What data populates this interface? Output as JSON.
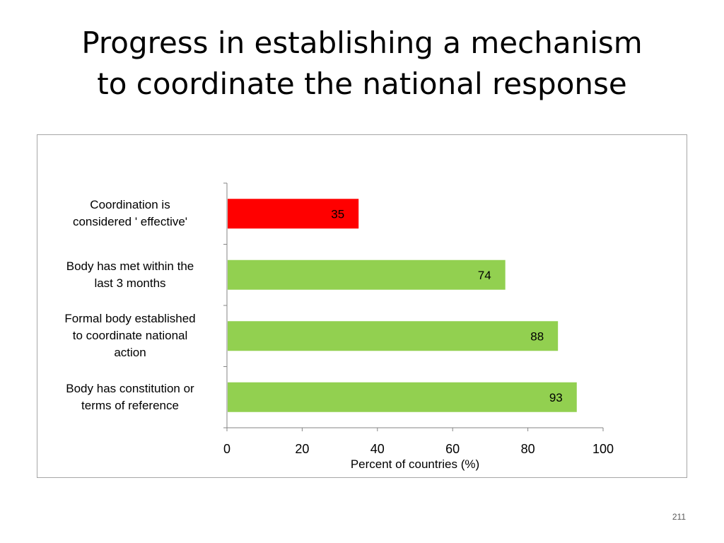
{
  "slide": {
    "title_line1": "Progress in establishing a mechanism",
    "title_line2": "to coordinate the national response",
    "page_number": "211"
  },
  "chart_data": {
    "type": "bar",
    "orientation": "horizontal",
    "categories": [
      "Coordination is considered ' effective'",
      "Body has met within the last 3 months",
      "Formal body established to coordinate national action",
      "Body has constitution or terms of reference"
    ],
    "category_lines": [
      [
        "Coordination is",
        "considered ' effective'"
      ],
      [
        "Body has met within the",
        "last 3 months"
      ],
      [
        "Formal body established",
        "to coordinate national",
        "action"
      ],
      [
        "Body has constitution or",
        "terms of reference"
      ]
    ],
    "values": [
      35,
      74,
      88,
      93
    ],
    "value_labels": [
      "35",
      "74",
      "88",
      "93"
    ],
    "bar_colors": [
      "#ff0000",
      "#92d050",
      "#92d050",
      "#92d050"
    ],
    "xlabel": "Percent of countries (%)",
    "xlim": [
      0,
      100
    ],
    "xticks": [
      0,
      20,
      40,
      60,
      80,
      100
    ],
    "xtick_labels": [
      "0",
      "20",
      "40",
      "60",
      "80",
      "100"
    ],
    "grid": false,
    "legend": "none"
  }
}
